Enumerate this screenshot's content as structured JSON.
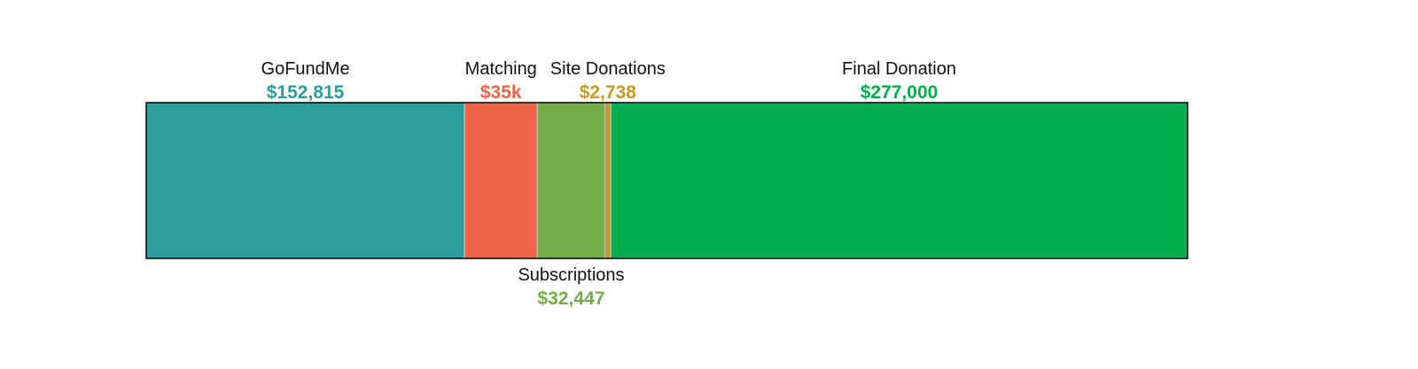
{
  "chart_data": {
    "type": "bar",
    "orientation": "horizontal-stacked",
    "title": "",
    "xlabel": "",
    "ylabel": "",
    "segments": [
      {
        "name": "GoFundMe",
        "value_label": "$152,815",
        "value": 152815,
        "color": "#2a9e9e",
        "label_position": "top"
      },
      {
        "name": "Matching",
        "value_label": "$35k",
        "value": 35000,
        "color": "#ef6445",
        "label_position": "top"
      },
      {
        "name": "Subscriptions",
        "value_label": "$32,447",
        "value": 32447,
        "color": "#72ad4a",
        "label_position": "bottom"
      },
      {
        "name": "Site Donations",
        "value_label": "$2,738",
        "value": 2738,
        "color": "#c49a22",
        "label_position": "top"
      },
      {
        "name": "Final Donation",
        "value_label": "$277,000",
        "value": 277000,
        "color": "#00ae4f",
        "label_position": "top"
      }
    ],
    "total": 500000,
    "grid": false,
    "legend": "none"
  }
}
